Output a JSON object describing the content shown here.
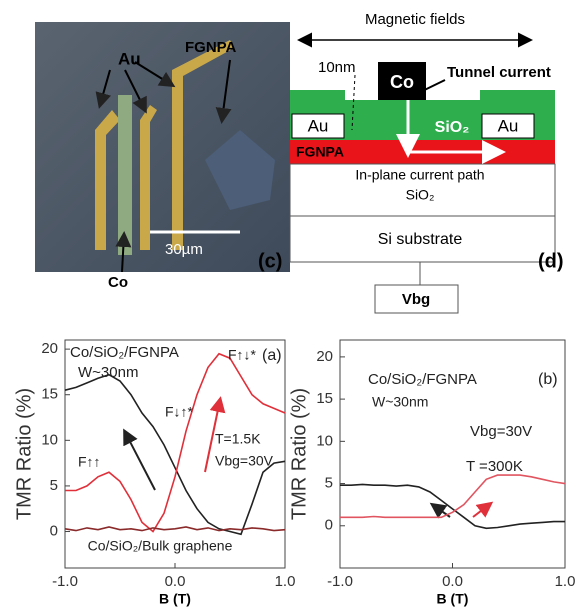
{
  "micrograph": {
    "labels": [
      "Au",
      "FGNPA",
      "30µm",
      "Co"
    ],
    "panel": "(c)"
  },
  "schematic": {
    "field": "Magnetic fields",
    "thickness": "10nm",
    "co": "Co",
    "tunnel": "Tunnel current",
    "au_left": "Au",
    "sio2_top": "SiO₂",
    "au_right": "Au",
    "fgnpa": "FGNPA",
    "path": "In-plane current path",
    "sio2_bottom": "SiO₂",
    "substrate": "Si substrate",
    "panel": "(d)",
    "gate": "Vbg"
  },
  "chart_data": [
    {
      "type": "line",
      "xlabel": "B (T)",
      "ylabel": "TMR Ratio (%)",
      "annotations": [
        "Co/SiO₂/FGNPA",
        "W~30nm",
        "F↑↓*",
        "F↓↑*",
        "F↑↑",
        "T=1.5K",
        "Vbg=30V",
        "(a)",
        "Co/SiO₂/Bulk graphene"
      ],
      "x": [
        -1,
        -0.9,
        -0.8,
        -0.7,
        -0.6,
        -0.5,
        -0.4,
        -0.3,
        -0.2,
        -0.1,
        0,
        0.1,
        0.2,
        0.3,
        0.4,
        0.5,
        0.6,
        0.7,
        0.8,
        0.9,
        1
      ],
      "series": [
        {
          "color": "#222222",
          "values": [
            15.5,
            15.8,
            16.3,
            16.8,
            17.2,
            16.5,
            15,
            13,
            11.5,
            9.5,
            7,
            4.5,
            2.5,
            1,
            0.3,
            0,
            -0.3,
            3,
            6.5,
            7.5,
            7.7
          ]
        },
        {
          "color": "#e0303a",
          "values": [
            4.5,
            4.5,
            5,
            6,
            6.5,
            5.5,
            3.5,
            1,
            0,
            2,
            6,
            11,
            15,
            18,
            19.5,
            19,
            17,
            15,
            14,
            13.5,
            13
          ]
        },
        {
          "color": "#8b2a2a",
          "values": [
            0.3,
            0.1,
            0.4,
            0.2,
            0.5,
            0.2,
            0.3,
            0.1,
            0.4,
            0.2,
            0.3,
            0.5,
            0.2,
            0.4,
            0.1,
            0.3,
            0.2,
            0.4,
            0.3,
            0.1,
            0.2
          ]
        }
      ],
      "xlim": [
        -1,
        1
      ],
      "xticks": [
        {
          "value": -1,
          "label": "-1.0"
        },
        {
          "value": 0,
          "label": "0.0"
        },
        {
          "value": 1,
          "label": "1.0"
        }
      ],
      "ylim": [
        -4,
        21
      ],
      "yticks": [
        0,
        5,
        10,
        15,
        20
      ]
    },
    {
      "type": "line",
      "xlabel": "B (T)",
      "ylabel": "TMR Ratio (%)",
      "annotations": [
        "Co/SiO₂/FGNPA",
        "W~30nm",
        "Vbg=30V",
        "T =300K",
        "(b)"
      ],
      "x": [
        -1,
        -0.9,
        -0.8,
        -0.7,
        -0.6,
        -0.5,
        -0.4,
        -0.3,
        -0.2,
        -0.1,
        0,
        0.1,
        0.2,
        0.3,
        0.4,
        0.5,
        0.6,
        0.7,
        0.8,
        0.9,
        1
      ],
      "series": [
        {
          "color": "#222222",
          "values": [
            4.8,
            4.8,
            4.9,
            4.8,
            4.8,
            4.7,
            4.8,
            4.6,
            4,
            3,
            2,
            1,
            0,
            -0.3,
            -0.2,
            0,
            0.2,
            0.3,
            0.4,
            0.5,
            0.5
          ]
        },
        {
          "color": "#e05560",
          "values": [
            1,
            1,
            1,
            1.1,
            1,
            1,
            1,
            1,
            1,
            1,
            1.6,
            2.5,
            4,
            5.5,
            6,
            6,
            6,
            5.8,
            5.5,
            5.2,
            5
          ]
        }
      ],
      "xlim": [
        -1,
        1
      ],
      "xticks": [
        {
          "value": -1,
          "label": "-1.0"
        },
        {
          "value": 0,
          "label": "0.0"
        },
        {
          "value": 1,
          "label": "1.0"
        }
      ],
      "ylim": [
        -5,
        22
      ],
      "yticks": [
        0,
        5,
        10,
        15,
        20
      ]
    }
  ]
}
